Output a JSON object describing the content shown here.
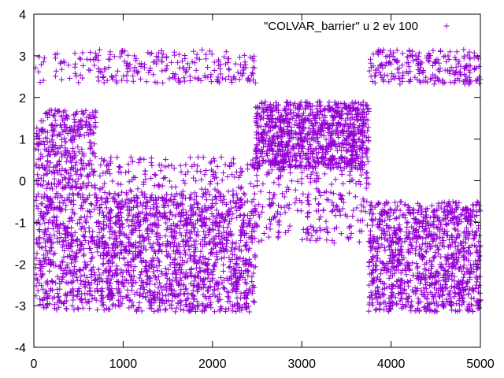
{
  "chart_data": {
    "type": "scatter",
    "marker": "plus",
    "color": "#9400d3",
    "legend": {
      "label": "\"COLVAR_barrier\" u 2 ev 100",
      "position": "top-right"
    },
    "xlim": [
      0,
      5000
    ],
    "ylim": [
      -4,
      4
    ],
    "xticks": [
      0,
      1000,
      2000,
      3000,
      4000,
      5000
    ],
    "yticks": [
      -4,
      -3,
      -2,
      -1,
      0,
      1,
      2,
      3,
      4
    ],
    "grid": false,
    "regions": [
      {
        "x": [
          20,
          2480
        ],
        "y": [
          2.35,
          3.15
        ],
        "weight": 250
      },
      {
        "x": [
          20,
          700
        ],
        "y": [
          -0.2,
          1.7
        ],
        "weight": 360
      },
      {
        "x": [
          20,
          700
        ],
        "y": [
          -3.1,
          -0.3
        ],
        "weight": 480
      },
      {
        "x": [
          700,
          2480
        ],
        "y": [
          -3.15,
          -0.3
        ],
        "weight": 1500
      },
      {
        "x": [
          700,
          2480
        ],
        "y": [
          -0.3,
          0.6
        ],
        "weight": 160
      },
      {
        "x": [
          2480,
          3750
        ],
        "y": [
          0.3,
          1.9
        ],
        "weight": 1000
      },
      {
        "x": [
          2480,
          3750
        ],
        "y": [
          -1.5,
          0.3
        ],
        "weight": 240
      },
      {
        "x": [
          3750,
          5000
        ],
        "y": [
          -3.15,
          -0.5
        ],
        "weight": 1100
      },
      {
        "x": [
          3750,
          5000
        ],
        "y": [
          2.3,
          3.15
        ],
        "weight": 230
      }
    ]
  }
}
